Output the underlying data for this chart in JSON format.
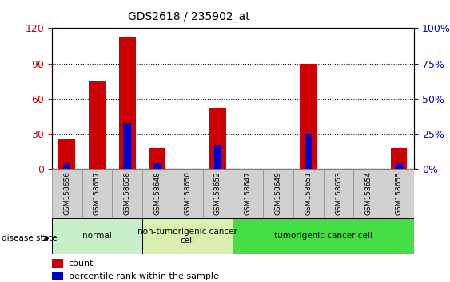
{
  "title": "GDS2618 / 235902_at",
  "samples": [
    "GSM158656",
    "GSM158657",
    "GSM158658",
    "GSM158648",
    "GSM158650",
    "GSM158652",
    "GSM158647",
    "GSM158649",
    "GSM158651",
    "GSM158653",
    "GSM158654",
    "GSM158655"
  ],
  "counts": [
    26,
    75,
    113,
    18,
    0,
    52,
    0,
    0,
    90,
    0,
    0,
    18
  ],
  "percentiles": [
    4,
    0,
    33,
    4,
    0,
    17,
    0,
    0,
    25,
    0,
    0,
    4
  ],
  "groups": [
    {
      "label": "normal",
      "start": 0,
      "end": 3,
      "color": "#c8f0c8"
    },
    {
      "label": "non-tumorigenic cancer\ncell",
      "start": 3,
      "end": 6,
      "color": "#d8f0b0"
    },
    {
      "label": "tumorigenic cancer cell",
      "start": 6,
      "end": 12,
      "color": "#44dd44"
    }
  ],
  "bar_color": "#cc0000",
  "percentile_color": "#0000cc",
  "ylim_left": [
    0,
    120
  ],
  "ylim_right": [
    0,
    100
  ],
  "yticks_left": [
    0,
    30,
    60,
    90,
    120
  ],
  "yticks_right": [
    0,
    25,
    50,
    75,
    100
  ],
  "tick_label_color_left": "#cc0000",
  "tick_label_color_right": "#0000cc",
  "legend_count_label": "count",
  "legend_percentile_label": "percentile rank within the sample",
  "disease_state_label": "disease state",
  "bar_width": 0.55,
  "percentile_bar_width": 0.25,
  "sample_box_color": "#d0d0d0",
  "sample_box_edge_color": "#888888"
}
